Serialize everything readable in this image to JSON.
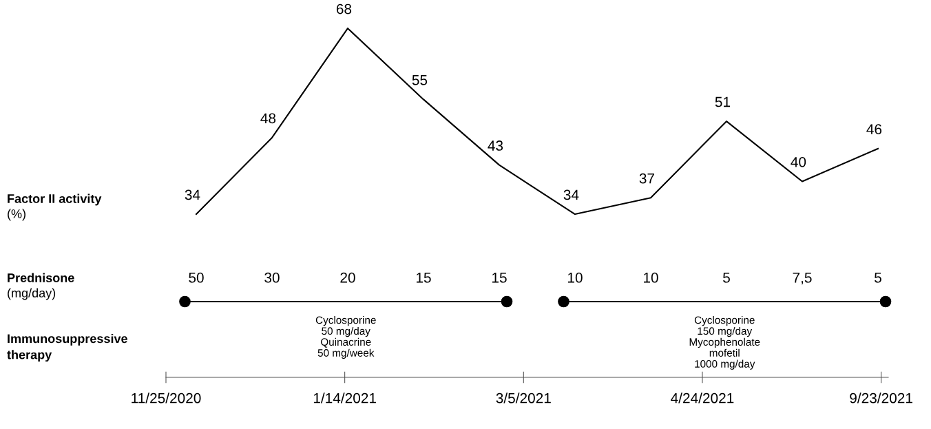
{
  "chart_data": [
    {
      "type": "line",
      "categories": [
        null,
        null,
        null,
        null,
        null,
        null,
        null,
        null,
        null,
        null
      ],
      "series": [
        {
          "color": "#000000",
          "values": [
            34,
            48,
            68,
            55,
            43,
            34,
            37,
            51,
            40,
            46
          ]
        }
      ],
      "data_labels": true,
      "marker": "none",
      "line_style": "solid",
      "tick_labels": false,
      "ylabel": "Factor II activity\n(%)"
    },
    {
      "type": "other",
      "categories": [
        null,
        null,
        null,
        null,
        null,
        null,
        null,
        null,
        null,
        null
      ],
      "annotations": [
        "50",
        "30",
        "20",
        "15",
        "15",
        "10",
        "10",
        "5",
        "7,5",
        "5"
      ],
      "ylabel": "Prednisone\n(mg/day)"
    },
    {
      "type": "other",
      "categories": [
        "11/25/2020",
        "1/14/2021",
        "3/5/2021",
        "4/24/2021",
        "9/23/2021"
      ],
      "ylabel": "Immunosuppressive\ntherapy",
      "annotations": [
        "Cyclosporine\n50 mg/day\nQuinacrine\n50 mg/week",
        "Cyclosporine\n150 mg/day\nMycophenolate\nmofetil\n1000 mg/day"
      ]
    }
  ]
}
